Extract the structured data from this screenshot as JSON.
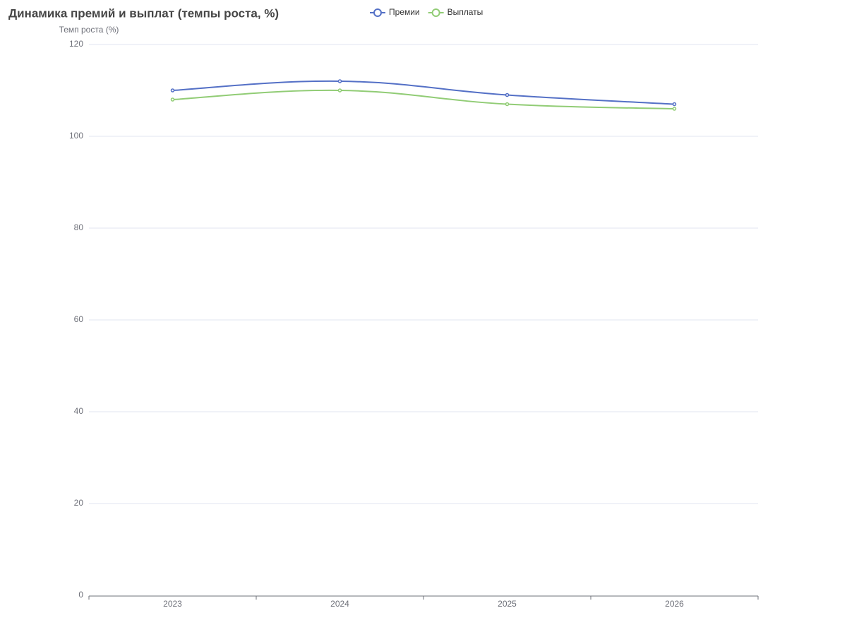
{
  "chart_data": {
    "type": "line",
    "title": "Динамика премий и выплат (темпы роста, %)",
    "y_axis_label": "Темп роста (%)",
    "categories": [
      "2023",
      "2024",
      "2025",
      "2026"
    ],
    "series": [
      {
        "name": "Премии",
        "color": "#5470c6",
        "values": [
          110,
          112,
          109,
          107
        ]
      },
      {
        "name": "Выплаты",
        "color": "#91cc75",
        "values": [
          108,
          110,
          107,
          106
        ]
      }
    ],
    "ylim": [
      0,
      120
    ],
    "yticks": [
      0,
      20,
      40,
      60,
      80,
      100,
      120
    ],
    "grid": true,
    "smooth": true,
    "legend": "top"
  }
}
